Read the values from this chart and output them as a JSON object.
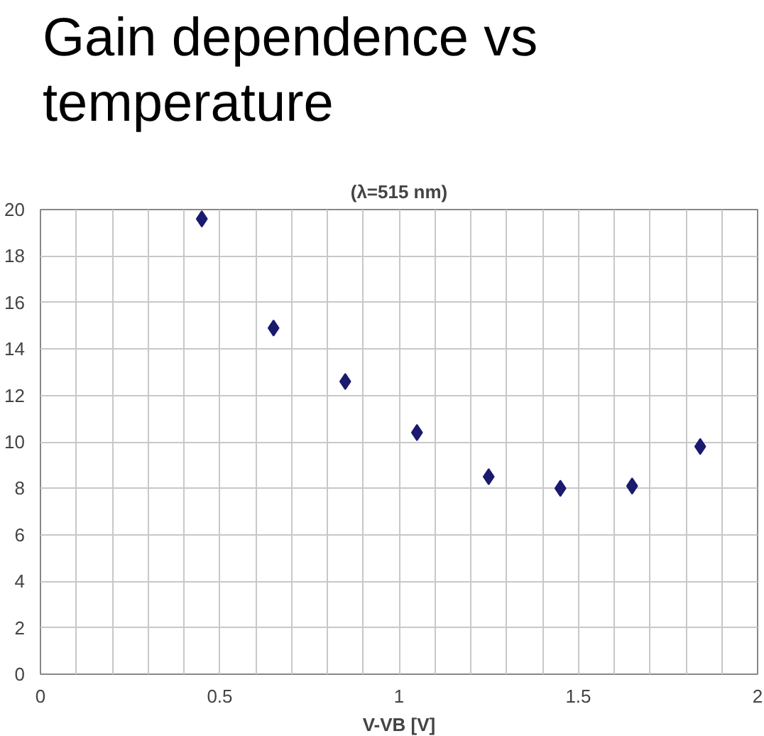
{
  "chart_data": {
    "type": "scatter",
    "title": "Gain dependence vs temperature",
    "subtitle": "(λ=515 nm)",
    "xlabel": "V-VB [V]",
    "x": [
      0.45,
      0.65,
      0.85,
      1.05,
      1.25,
      1.45,
      1.65,
      1.84
    ],
    "series": [
      {
        "color": "#1a1a6e",
        "values": [
          19.6,
          14.9,
          12.6,
          10.4,
          8.5,
          8.0,
          8.1,
          9.8
        ]
      }
    ],
    "xlim": [
      0,
      2
    ],
    "ylim": [
      0,
      20
    ],
    "xticks": [
      0,
      {
        "value": 0.1,
        "label": null
      },
      {
        "value": 0.2,
        "label": null
      },
      {
        "value": 0.3,
        "label": null
      },
      {
        "value": 0.4,
        "label": null
      },
      0.5,
      {
        "value": 0.6,
        "label": null
      },
      {
        "value": 0.7,
        "label": null
      },
      {
        "value": 0.8,
        "label": null
      },
      {
        "value": 0.9,
        "label": null
      },
      1,
      {
        "value": 1.1,
        "label": null
      },
      {
        "value": 1.2,
        "label": null
      },
      {
        "value": 1.3,
        "label": null
      },
      {
        "value": 1.4,
        "label": null
      },
      1.5,
      {
        "value": 1.6,
        "label": null
      },
      {
        "value": 1.7,
        "label": null
      },
      {
        "value": 1.8,
        "label": null
      },
      {
        "value": 1.9,
        "label": null
      },
      2
    ],
    "yticks": [
      0,
      2,
      4,
      6,
      8,
      10,
      12,
      14,
      16,
      18,
      20
    ],
    "grid": true,
    "marker": "diamond"
  }
}
